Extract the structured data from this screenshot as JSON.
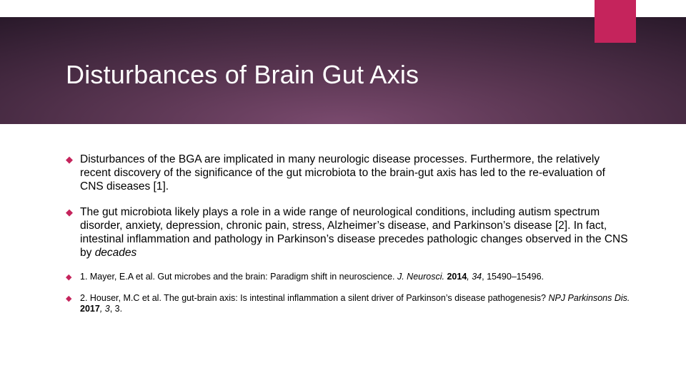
{
  "slide": {
    "title": "Disturbances of Brain Gut Axis",
    "accent_color": "#c5245c",
    "header_gradient": [
      "#7a4a6e",
      "#5a3652",
      "#3a2338",
      "#1d1220",
      "#0a0510"
    ],
    "background_color": "#ffffff",
    "title_color": "#ffffff",
    "body_text_color": "#000000",
    "title_fontsize": 36,
    "body_fontsize": 15.5,
    "ref_fontsize": 12.5,
    "bullet_glyph": "◆",
    "bullets": [
      {
        "text": "Disturbances of the BGA are implicated in many neurologic disease processes. Furthermore, the relatively recent discovery of the significance of the gut microbiota to the brain-gut axis has led to the re-evaluation of CNS diseases [1].",
        "type": "body"
      },
      {
        "text": "The gut microbiota likely plays a role in a wide range of neurological conditions, including autism spectrum disorder, anxiety, depression, chronic pain, stress, Alzheimer’s disease, and Parkinson’s disease [2]. In fact, intestinal inflammation and pathology in Parkinson’s disease precedes pathologic changes observed in the CNS by ",
        "emphasis_word": "decades",
        "type": "body"
      },
      {
        "prefix": "1. Mayer, E.A et al. Gut microbes and the brain: Paradigm shift in neuroscience. ",
        "journal": "J. Neurosci.",
        "year_bold": " 2014",
        "vol_italic": ", 34",
        "pages": ", 15490–15496.",
        "type": "ref"
      },
      {
        "prefix": "2. Houser, M.C et al. The gut-brain axis: Is intestinal inflammation a silent driver of Parkinson’s disease pathogenesis? ",
        "journal": "NPJ Parkinsons Dis.",
        "year_bold": " 2017",
        "vol_italic": ", 3",
        "pages": ", 3.",
        "type": "ref"
      }
    ]
  }
}
